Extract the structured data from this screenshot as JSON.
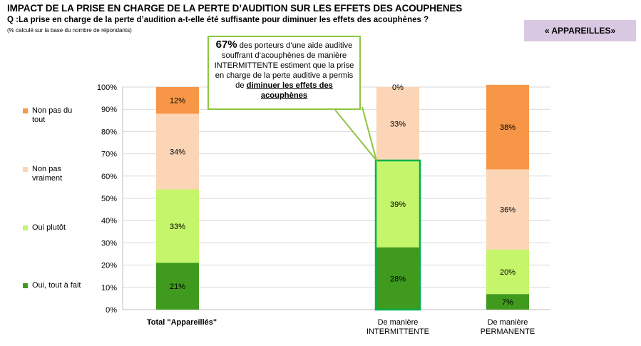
{
  "header": {
    "title": "IMPACT DE LA PRISE EN CHARGE DE LA PERTE D’AUDITION SUR LES EFFETS DES ACOUPHENES",
    "question": "Q :La prise en charge de la perte d’audition a-t-elle été suffisante pour diminuer les effets des acouphènes ?",
    "note": "(% calculé sur la base du nombre de répondants)",
    "badge": "« APPAREILLES»"
  },
  "callout": {
    "pct": "67%",
    "text_before": " des porteurs d’une aide auditive souffrant d’acouphènes de manière INTERMITTENTE  estiment que la prise en charge de la perte auditive a permis de ",
    "emphasis": "diminuer les effets des acouphènes"
  },
  "chart_data": {
    "type": "bar",
    "stacked": true,
    "categories": [
      "Total \"Appareillés\"",
      "De manière INTERMITTENTE",
      "De manière PERMANENTE"
    ],
    "category_lines": [
      [
        "Total \"Appareillés\""
      ],
      [
        "De manière",
        "INTERMITTENTE"
      ],
      [
        "De manière",
        "PERMANENTE"
      ]
    ],
    "series": [
      {
        "name": "Oui, tout à fait",
        "color": "#3f9a1e",
        "values": [
          21,
          28,
          7
        ]
      },
      {
        "name": "Oui plutôt",
        "color": "#c4f56a",
        "values": [
          33,
          39,
          20
        ]
      },
      {
        "name": "Non pas vraiment",
        "color": "#fbd5b5",
        "values": [
          34,
          33,
          36
        ]
      },
      {
        "name": "Non pas du tout",
        "color": "#f79646",
        "values": [
          12,
          0,
          38
        ]
      }
    ],
    "data_labels": [
      [
        "21%",
        "28%",
        "7%"
      ],
      [
        "33%",
        "39%",
        "20%"
      ],
      [
        "34%",
        "33%",
        "36%"
      ],
      [
        "12%",
        "0%",
        "38%"
      ]
    ],
    "yticks": [
      "0%",
      "10%",
      "20%",
      "30%",
      "40%",
      "50%",
      "60%",
      "70%",
      "80%",
      "90%",
      "100%"
    ],
    "ylim": [
      0,
      100
    ],
    "grid": true,
    "legend_position": "left",
    "highlight": {
      "category": "De manière INTERMITTENTE",
      "series": [
        "Oui, tout à fait",
        "Oui plutôt"
      ],
      "color": "#00b050"
    }
  }
}
